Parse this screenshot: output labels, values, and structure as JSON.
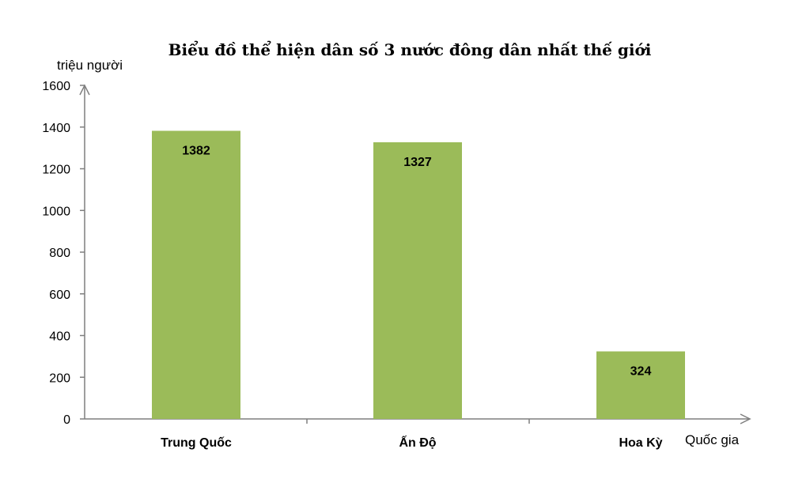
{
  "chart_data": {
    "type": "bar",
    "title": "Biểu đồ thể hiện dân số 3 nước đông dân nhất thế giới",
    "ylabel": "triệu người",
    "xlabel": "Quốc gia",
    "categories": [
      "Trung Quốc",
      "Ấn Độ",
      "Hoa Kỳ"
    ],
    "values": [
      1382,
      1327,
      324
    ],
    "data_labels": [
      "1382",
      "1327",
      "324"
    ],
    "ylim": [
      0,
      1600
    ],
    "yticks": [
      0,
      200,
      400,
      600,
      800,
      1000,
      1200,
      1400,
      1600
    ],
    "grid": false,
    "legend": "none",
    "bar_color": "#9bbb59"
  }
}
